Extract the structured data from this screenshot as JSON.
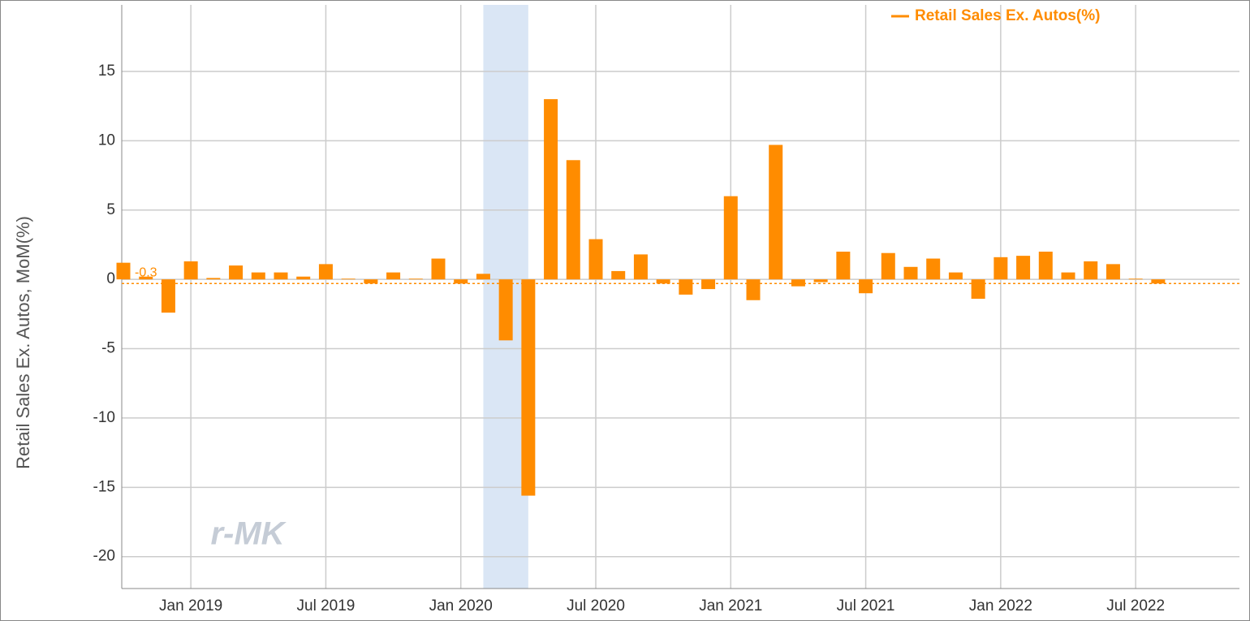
{
  "chart_data": {
    "type": "bar",
    "y_label": "Retail Sales Ex. Autos, MoM(%)",
    "watermark": "r-MK",
    "legend_position": "top-right",
    "grid": true,
    "x": [
      "2018-10",
      "2018-11",
      "2018-12",
      "2019-01",
      "2019-02",
      "2019-03",
      "2019-04",
      "2019-05",
      "2019-06",
      "2019-07",
      "2019-08",
      "2019-09",
      "2019-10",
      "2019-11",
      "2019-12",
      "2020-01",
      "2020-02",
      "2020-03",
      "2020-04",
      "2020-05",
      "2020-06",
      "2020-07",
      "2020-08",
      "2020-09",
      "2020-10",
      "2020-11",
      "2020-12",
      "2021-01",
      "2021-02",
      "2021-03",
      "2021-04",
      "2021-05",
      "2021-06",
      "2021-07",
      "2021-08",
      "2021-09",
      "2021-10",
      "2021-11",
      "2021-12",
      "2022-01",
      "2022-02",
      "2022-03",
      "2022-04",
      "2022-05",
      "2022-06",
      "2022-07",
      "2022-08"
    ],
    "series": [
      {
        "name": "Retail Sales Ex. Autos(%)",
        "color": "#ff8c00",
        "values": [
          1.2,
          0.2,
          -2.4,
          1.3,
          0.1,
          1.0,
          0.5,
          0.5,
          0.2,
          1.1,
          0.05,
          -0.3,
          0.5,
          0.05,
          1.5,
          -0.3,
          0.4,
          -4.4,
          -15.6,
          13.0,
          8.6,
          2.9,
          0.6,
          1.8,
          -0.3,
          -1.1,
          -0.7,
          6.0,
          -1.5,
          9.7,
          -0.5,
          -0.2,
          2.0,
          -1.0,
          1.9,
          0.9,
          1.5,
          0.5,
          -1.4,
          1.6,
          1.7,
          2.0,
          0.5,
          1.3,
          1.1,
          0.05,
          -0.3
        ]
      }
    ],
    "reference_line": {
      "value": -0.3,
      "color": "#ff8c00"
    },
    "shaded_range": {
      "x": [
        "2020-02",
        "2020-04"
      ],
      "color": "#dae6f5"
    },
    "xlim": [
      "2018-10",
      "2022-11"
    ],
    "xticks": [
      {
        "value": "2019-01",
        "label": "Jan 2019"
      },
      {
        "value": "2019-07",
        "label": "Jul 2019"
      },
      {
        "value": "2020-01",
        "label": "Jan 2020"
      },
      {
        "value": "2020-07",
        "label": "Jul 2020"
      },
      {
        "value": "2021-01",
        "label": "Jan 2021"
      },
      {
        "value": "2021-07",
        "label": "Jul 2021"
      },
      {
        "value": "2022-01",
        "label": "Jan 2022"
      },
      {
        "value": "2022-07",
        "label": "Jul 2022"
      }
    ],
    "ylim": [
      -22.3,
      19.8
    ],
    "yticks": [
      -20,
      -15,
      -10,
      -5,
      0,
      5,
      10,
      15
    ]
  }
}
